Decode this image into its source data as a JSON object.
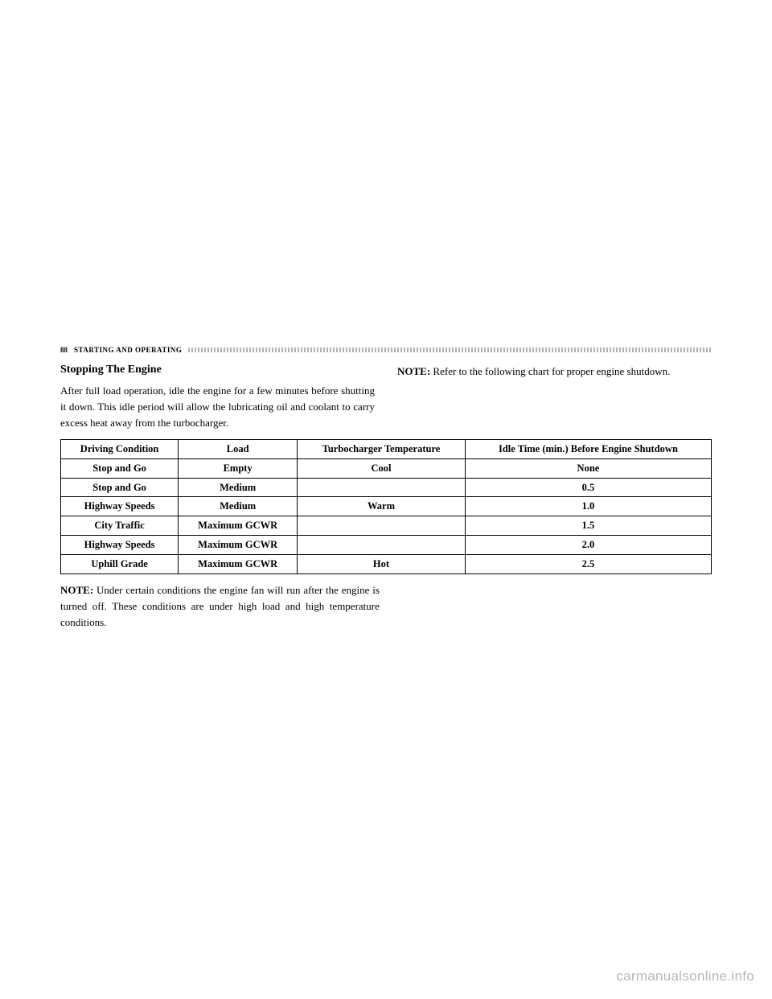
{
  "header": {
    "page_number": "88",
    "section_title": "STARTING AND OPERATING"
  },
  "left_column": {
    "title": "Stopping The Engine",
    "paragraph": "After full load operation, idle the engine for a few minutes before shutting it down. This idle period will allow the lubricating oil and coolant to carry excess heat away from the turbocharger."
  },
  "right_column": {
    "note_label": "NOTE:",
    "note_text": " Refer to the following chart for proper engine shutdown."
  },
  "table": {
    "headers": [
      "Driving Condition",
      "Load",
      "Turbocharger Temperature",
      "Idle Time (min.) Before Engine Shutdown"
    ],
    "rows": [
      [
        "Stop and Go",
        "Empty",
        "Cool",
        "None"
      ],
      [
        "Stop and Go",
        "Medium",
        "",
        "0.5"
      ],
      [
        "Highway Speeds",
        "Medium",
        "Warm",
        "1.0"
      ],
      [
        "City Traffic",
        "Maximum GCWR",
        "",
        "1.5"
      ],
      [
        "Highway Speeds",
        "Maximum GCWR",
        "",
        "2.0"
      ],
      [
        "Uphill Grade",
        "Maximum GCWR",
        "Hot",
        "2.5"
      ]
    ]
  },
  "footer_note": {
    "note_label": "NOTE:",
    "note_text": " Under certain conditions the engine fan will run after the engine is turned off. These conditions are under high load and high temperature conditions."
  },
  "watermark": "carmanualsonline.info"
}
